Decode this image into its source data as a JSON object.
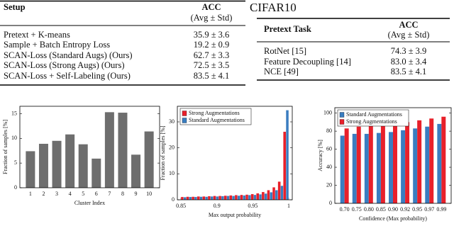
{
  "table1": {
    "header": [
      "Setup",
      "ACC",
      "(Avg ± Std)"
    ],
    "rows": [
      [
        "Pretext + K-means",
        "35.9 ± 3.6"
      ],
      [
        "Sample + Batch Entropy Loss",
        "19.2 ± 0.9"
      ],
      [
        "SCAN-Loss (Standard Augs) (Ours)",
        "62.7 ± 3.3"
      ],
      [
        "SCAN-Loss (Strong Augs) (Ours)",
        "72.5 ± 3.5"
      ],
      [
        "SCAN-Loss + Self-Labeling (Ours)",
        "83.5 ± 4.1"
      ]
    ]
  },
  "table2": {
    "title": "CIFAR10",
    "header": [
      "Pretext Task",
      "ACC",
      "(Avg ± Std)"
    ],
    "rows": [
      [
        "RotNet [15]",
        "74.3 ± 3.9"
      ],
      [
        "Feature Decoupling [14]",
        "83.0 ± 3.4"
      ],
      [
        "NCE [49]",
        "83.5 ± 4.1"
      ]
    ]
  },
  "chart_data": [
    {
      "type": "bar",
      "xlabel": "Cluster Index",
      "ylabel": "Fraction of samples [%]",
      "categories": [
        "1",
        "2",
        "3",
        "4",
        "5",
        "6",
        "7",
        "8",
        "9",
        "10"
      ],
      "values": [
        7.4,
        8.9,
        9.5,
        10.8,
        8.8,
        5.9,
        15.3,
        15.2,
        6.7,
        11.4
      ],
      "color": "#6e6e6e",
      "ylim": [
        0,
        16.5
      ],
      "yticks": [
        0,
        5,
        10,
        15
      ]
    },
    {
      "type": "histogram",
      "xlabel": "Max output probability",
      "ylabel": "Fraction of samples [%]",
      "bins": [
        0.85,
        0.8575,
        0.865,
        0.8725,
        0.88,
        0.8875,
        0.895,
        0.9025,
        0.91,
        0.9175,
        0.925,
        0.9325,
        0.94,
        0.9475,
        0.955,
        0.9625,
        0.97,
        0.9775,
        0.985,
        0.9925,
        1.0
      ],
      "series": [
        {
          "name": "Strong Augmentations",
          "color": "#e8202a",
          "values": [
            1.1,
            1.2,
            1.2,
            1.3,
            1.3,
            1.4,
            1.5,
            1.5,
            1.6,
            1.7,
            1.8,
            1.9,
            2.0,
            2.2,
            2.5,
            3.0,
            3.7,
            4.8,
            7.0,
            26.2
          ]
        },
        {
          "name": "Standard Augmentations",
          "color": "#3a7dc0",
          "values": [
            1.0,
            1.1,
            1.1,
            1.2,
            1.2,
            1.3,
            1.3,
            1.4,
            1.5,
            1.5,
            1.6,
            1.7,
            1.8,
            1.9,
            2.1,
            2.4,
            2.9,
            3.7,
            5.4,
            34.5
          ]
        }
      ],
      "xlim": [
        0.845,
        1.005
      ],
      "xticks": [
        0.85,
        0.9,
        0.95,
        1
      ],
      "ylim": [
        0,
        36
      ],
      "yticks": [
        0,
        10,
        20,
        30
      ],
      "legend": "upper left"
    },
    {
      "type": "bar",
      "xlabel": "Confidence (Max probability)",
      "ylabel": "Accuracy [%]",
      "categories": [
        "0.70",
        "0.75",
        "0.80",
        "0.85",
        "0.90",
        "0.92",
        "0.95",
        "0.97",
        "0.99"
      ],
      "series": [
        {
          "name": "Standard Augmentations",
          "color": "#3a7dc0",
          "values": [
            75,
            77,
            77,
            78,
            79,
            81,
            83,
            85,
            88
          ]
        },
        {
          "name": "Strong Augmentations",
          "color": "#e8202a",
          "values": [
            83,
            85,
            86,
            87,
            88,
            90,
            92,
            94,
            96
          ]
        }
      ],
      "ylim": [
        0,
        106
      ],
      "yticks": [
        0,
        20,
        40,
        60,
        80,
        100
      ],
      "legend": "upper left"
    }
  ]
}
